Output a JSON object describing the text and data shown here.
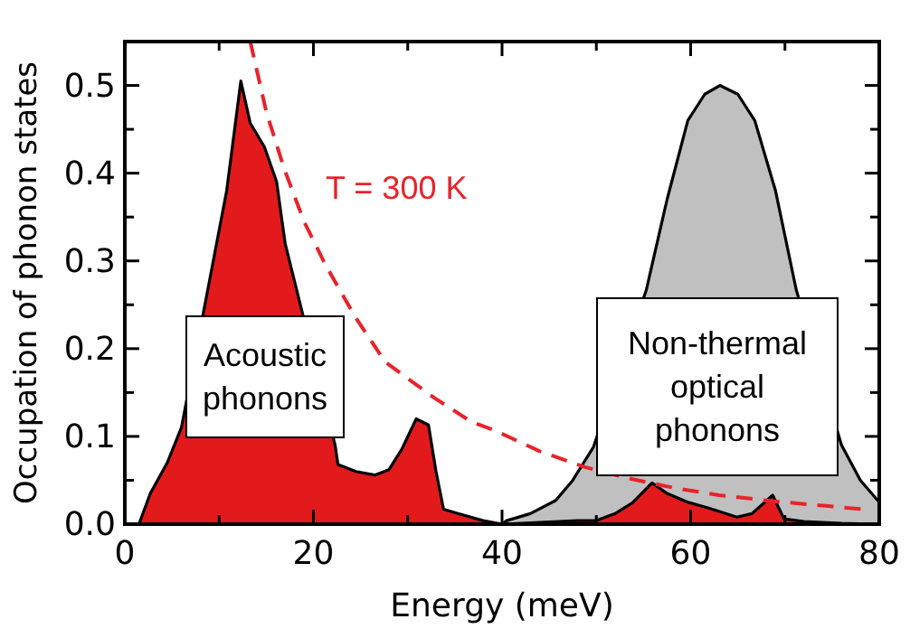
{
  "chart_data": {
    "type": "area",
    "xlabel": "Energy (meV)",
    "ylabel": "Occupation of phonon states",
    "xlim": [
      0,
      80
    ],
    "xticks": [
      0,
      20,
      40,
      60,
      80
    ],
    "ylim": [
      0,
      0.55
    ],
    "yticks": [
      {
        "value": 0,
        "label": "0.0"
      },
      0.1,
      0.2,
      0.3,
      0.4,
      0.5
    ],
    "grid": false,
    "series": [
      {
        "color": "#c0c0c0",
        "x": [
          40,
          40.5,
          43,
          45.7,
          47.5,
          49.7,
          55.3,
          57.5,
          59.7,
          61.5,
          63.1,
          65,
          66.8,
          69,
          71.2,
          76,
          78,
          80
        ],
        "values": [
          0,
          0.004,
          0.012,
          0.027,
          0.05,
          0.088,
          0.267,
          0.37,
          0.46,
          0.49,
          0.5,
          0.49,
          0.46,
          0.38,
          0.267,
          0.09,
          0.05,
          0.025
        ]
      },
      {
        "color": "#e31a1c",
        "x": [
          1.5,
          2.7,
          4.5,
          6,
          10.8,
          12.3,
          13.3,
          14.8,
          16.1,
          17,
          22.3,
          22.6,
          24.5,
          26.5,
          28,
          29.4,
          30.9,
          32.2,
          33,
          33.8,
          36,
          38,
          40,
          44,
          48,
          50,
          52,
          53.9,
          55.9,
          57.5,
          59.7,
          62,
          64.9,
          66.5,
          68.7,
          69.9,
          72,
          76,
          80
        ],
        "values": [
          0,
          0.035,
          0.07,
          0.11,
          0.38,
          0.505,
          0.457,
          0.43,
          0.39,
          0.32,
          0.09,
          0.068,
          0.06,
          0.056,
          0.062,
          0.086,
          0.12,
          0.113,
          0.06,
          0.017,
          0.01,
          0.004,
          0,
          0.002,
          0.004,
          0.004,
          0.012,
          0.025,
          0.047,
          0.035,
          0.025,
          0.018,
          0.008,
          0.012,
          0.033,
          0.006,
          0.003,
          0.001,
          0
        ]
      },
      {
        "type": "line",
        "color": "#e8232a",
        "line_style": "dashed",
        "marker": "none",
        "x": [
          13.3,
          15,
          16.9,
          19,
          21.3,
          24.5,
          27.6,
          32.8,
          36.7,
          39.2,
          44,
          48.8,
          53.5,
          58.4,
          63,
          68,
          73,
          78.3
        ],
        "values": [
          0.55,
          0.47,
          0.405,
          0.345,
          0.295,
          0.235,
          0.185,
          0.144,
          0.117,
          0.107,
          0.083,
          0.065,
          0.052,
          0.041,
          0.033,
          0.027,
          0.022,
          0.017
        ]
      }
    ],
    "annotations": [
      "T = 300 K",
      "Acoustic phonons",
      "Non-thermal optical phonons"
    ]
  }
}
